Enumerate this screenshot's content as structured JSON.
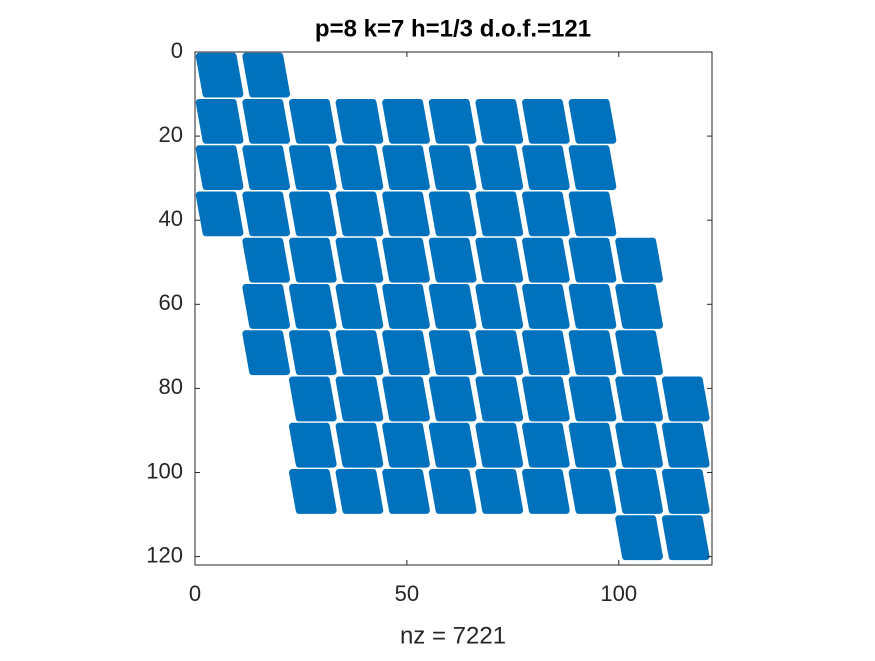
{
  "chart_data": {
    "type": "spy",
    "title": "p=8 k=7 h=1/3 d.o.f.=121",
    "xlabel": "nz = 7221",
    "xlim": [
      0,
      122
    ],
    "ylim": [
      0,
      122
    ],
    "xticks": [
      0,
      50,
      100
    ],
    "yticks": [
      0,
      20,
      40,
      60,
      80,
      100,
      120
    ],
    "color": "#0072bd",
    "blocks": [
      [
        1,
        1
      ],
      [
        1,
        12
      ],
      [
        12,
        1
      ],
      [
        12,
        12
      ],
      [
        12,
        23
      ],
      [
        12,
        34
      ],
      [
        12,
        45
      ],
      [
        12,
        56
      ],
      [
        12,
        67
      ],
      [
        12,
        78
      ],
      [
        12,
        89
      ],
      [
        23,
        1
      ],
      [
        23,
        12
      ],
      [
        23,
        23
      ],
      [
        23,
        34
      ],
      [
        23,
        45
      ],
      [
        23,
        56
      ],
      [
        23,
        67
      ],
      [
        23,
        78
      ],
      [
        23,
        89
      ],
      [
        34,
        1
      ],
      [
        34,
        12
      ],
      [
        34,
        23
      ],
      [
        34,
        34
      ],
      [
        34,
        45
      ],
      [
        34,
        56
      ],
      [
        34,
        67
      ],
      [
        34,
        78
      ],
      [
        34,
        89
      ],
      [
        45,
        12
      ],
      [
        45,
        23
      ],
      [
        45,
        34
      ],
      [
        45,
        45
      ],
      [
        45,
        56
      ],
      [
        45,
        67
      ],
      [
        45,
        78
      ],
      [
        45,
        89
      ],
      [
        45,
        100
      ],
      [
        56,
        12
      ],
      [
        56,
        23
      ],
      [
        56,
        34
      ],
      [
        56,
        45
      ],
      [
        56,
        56
      ],
      [
        56,
        67
      ],
      [
        56,
        78
      ],
      [
        56,
        89
      ],
      [
        56,
        100
      ],
      [
        67,
        12
      ],
      [
        67,
        23
      ],
      [
        67,
        34
      ],
      [
        67,
        45
      ],
      [
        67,
        56
      ],
      [
        67,
        67
      ],
      [
        67,
        78
      ],
      [
        67,
        89
      ],
      [
        67,
        100
      ],
      [
        78,
        23
      ],
      [
        78,
        34
      ],
      [
        78,
        45
      ],
      [
        78,
        56
      ],
      [
        78,
        67
      ],
      [
        78,
        78
      ],
      [
        78,
        89
      ],
      [
        78,
        100
      ],
      [
        78,
        111
      ],
      [
        89,
        23
      ],
      [
        89,
        34
      ],
      [
        89,
        45
      ],
      [
        89,
        56
      ],
      [
        89,
        67
      ],
      [
        89,
        78
      ],
      [
        89,
        89
      ],
      [
        89,
        100
      ],
      [
        89,
        111
      ],
      [
        100,
        23
      ],
      [
        100,
        34
      ],
      [
        100,
        45
      ],
      [
        100,
        56
      ],
      [
        100,
        67
      ],
      [
        100,
        78
      ],
      [
        100,
        89
      ],
      [
        100,
        100
      ],
      [
        100,
        111
      ],
      [
        111,
        100
      ],
      [
        111,
        111
      ]
    ]
  }
}
